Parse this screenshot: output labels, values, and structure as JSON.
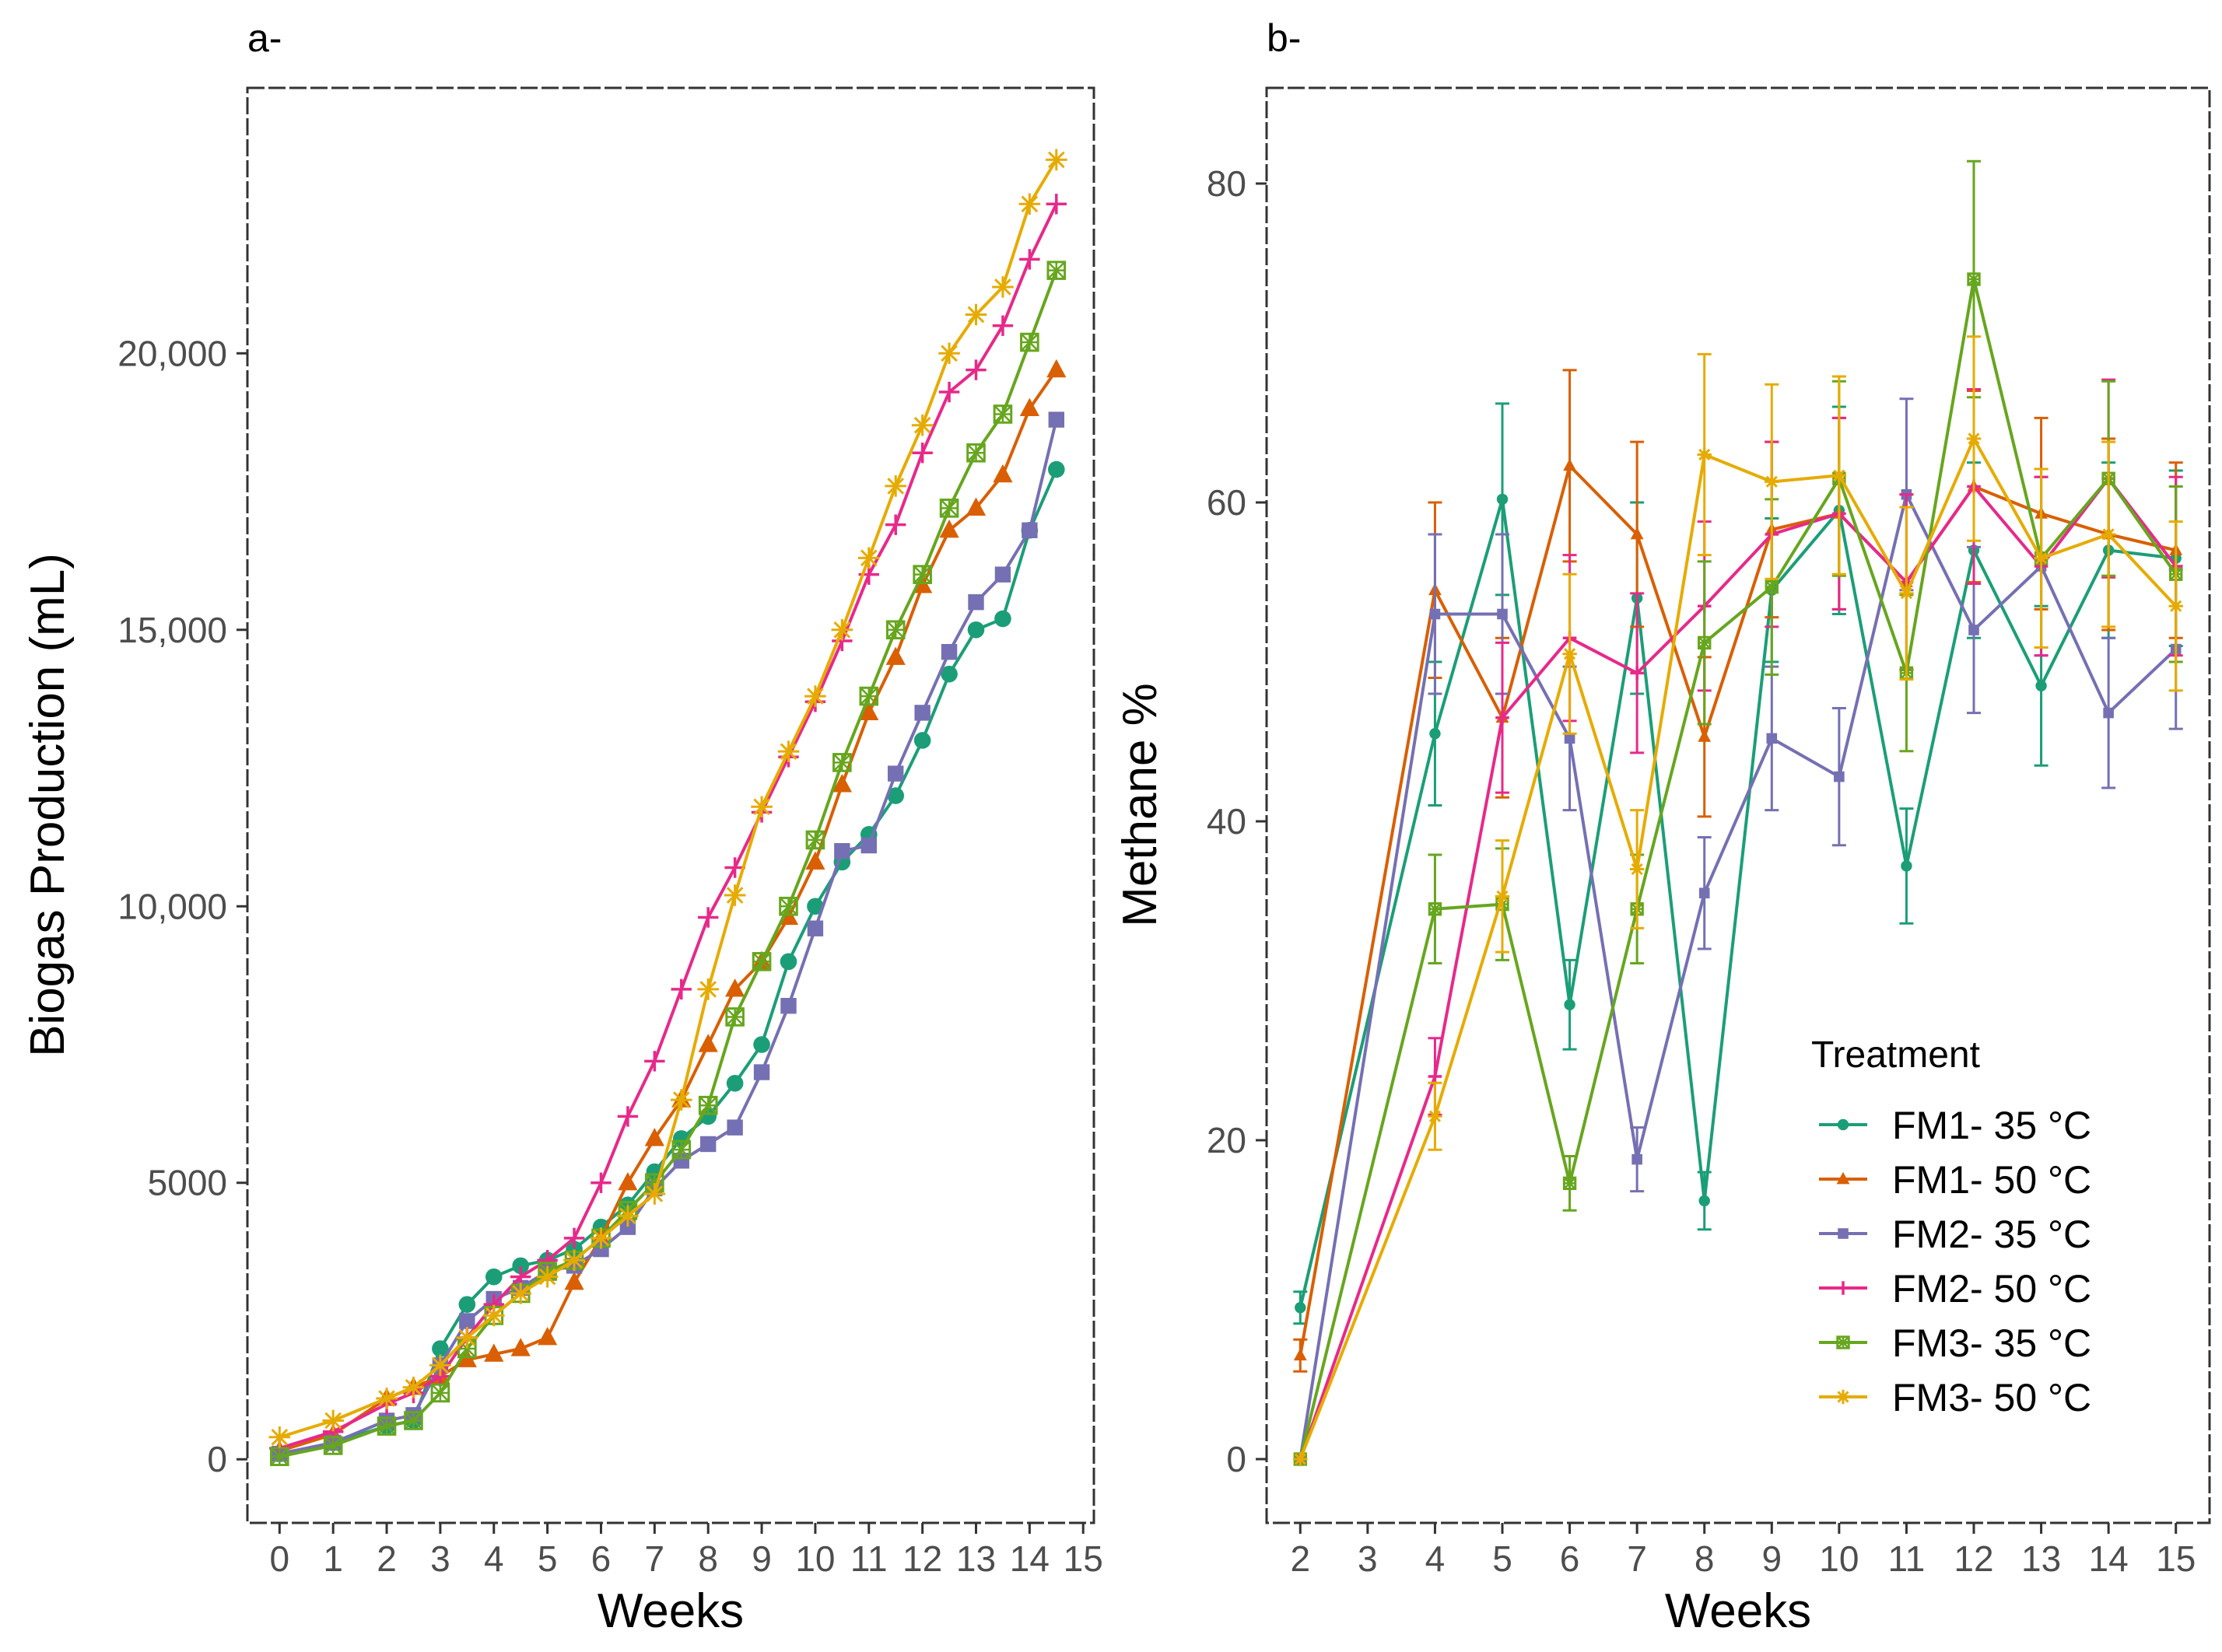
{
  "figure": {
    "panel_a_label": "a-",
    "panel_b_label": "b-"
  },
  "legend": {
    "title": "Treatment",
    "entries": [
      {
        "label": "FM1- 35 °C",
        "color": "#1b9e77",
        "marker": "circle"
      },
      {
        "label": "FM1- 50 °C",
        "color": "#d95f02",
        "marker": "triangle"
      },
      {
        "label": "FM2- 35 °C",
        "color": "#7570b3",
        "marker": "square"
      },
      {
        "label": "FM2- 50 °C",
        "color": "#e7298a",
        "marker": "plus"
      },
      {
        "label": "FM3- 35 °C",
        "color": "#66a61e",
        "marker": "boxed-cross"
      },
      {
        "label": "FM3- 50 °C",
        "color": "#e6ab02",
        "marker": "asterisk"
      }
    ]
  },
  "chart_data": [
    {
      "type": "line",
      "title": "a-",
      "xlabel": "Weeks",
      "ylabel": "Biogas Production (mL)",
      "xlim": [
        -0.6,
        15.2
      ],
      "ylim": [
        -1150,
        24800
      ],
      "x_ticks": [
        0,
        1,
        2,
        3,
        4,
        5,
        6,
        7,
        8,
        9,
        10,
        11,
        12,
        13,
        14,
        15
      ],
      "x_tick_labels": [
        "0",
        "1",
        "2",
        "3",
        "4",
        "5",
        "6",
        "7",
        "8",
        "9",
        "10",
        "11",
        "12",
        "13",
        "14",
        "15"
      ],
      "y_ticks": [
        0,
        5000,
        10000,
        15000,
        20000
      ],
      "y_tick_labels": [
        "0",
        "5000",
        "10,000",
        "15,000",
        "20,000"
      ],
      "grid": false,
      "series": [
        {
          "name": "FM1- 35 °C",
          "x": [
            0,
            1,
            2,
            2.5,
            3,
            3.5,
            4,
            4.5,
            5,
            5.5,
            6,
            6.5,
            7,
            7.5,
            8,
            8.5,
            9,
            9.5,
            10,
            10.5,
            11,
            11.5,
            12,
            12.5,
            13,
            13.5,
            14,
            14.5
          ],
          "y": [
            100,
            300,
            600,
            700,
            2000,
            2800,
            3300,
            3500,
            3600,
            3800,
            4200,
            4600,
            5200,
            5800,
            6200,
            6800,
            7500,
            9000,
            10000,
            10800,
            11300,
            12000,
            13000,
            14200,
            15000,
            15200,
            16800,
            17900
          ]
        },
        {
          "name": "FM1- 50 °C",
          "x": [
            0,
            1,
            2,
            2.5,
            3,
            3.5,
            4,
            4.5,
            5,
            5.5,
            6,
            6.5,
            7,
            7.5,
            8,
            8.5,
            9,
            9.5,
            10,
            10.5,
            11,
            11.5,
            12,
            12.5,
            13,
            13.5,
            14,
            14.5
          ],
          "y": [
            150,
            450,
            1100,
            1300,
            1500,
            1800,
            1900,
            2000,
            2200,
            3200,
            4000,
            5000,
            5800,
            6500,
            7500,
            8500,
            9000,
            9800,
            10800,
            12200,
            13500,
            14500,
            15800,
            16800,
            17200,
            17800,
            19000,
            19700
          ]
        },
        {
          "name": "FM2- 35 °C",
          "x": [
            0,
            1,
            2,
            2.5,
            3,
            3.5,
            4,
            4.5,
            5,
            5.5,
            6,
            6.5,
            7,
            7.5,
            8,
            8.5,
            9,
            9.5,
            10,
            10.5,
            11,
            11.5,
            12,
            12.5,
            13,
            13.5,
            14,
            14.5
          ],
          "y": [
            100,
            300,
            700,
            800,
            1700,
            2500,
            2900,
            3100,
            3400,
            3500,
            3800,
            4200,
            4900,
            5400,
            5700,
            6000,
            7000,
            8200,
            9600,
            11000,
            11100,
            12400,
            13500,
            14600,
            15500,
            16000,
            16800,
            18800
          ]
        },
        {
          "name": "FM2- 50 °C",
          "x": [
            0,
            1,
            2,
            2.5,
            3,
            3.5,
            4,
            4.5,
            5,
            5.5,
            6,
            6.5,
            7,
            7.5,
            8,
            8.5,
            9,
            9.5,
            10,
            10.5,
            11,
            11.5,
            12,
            12.5,
            13,
            13.5,
            14,
            14.5
          ],
          "y": [
            200,
            500,
            1000,
            1200,
            1500,
            2200,
            2800,
            3300,
            3600,
            4000,
            5000,
            6200,
            7200,
            8500,
            9800,
            10700,
            11700,
            12700,
            13700,
            14800,
            16000,
            16900,
            18200,
            19300,
            19700,
            20500,
            21700,
            22700
          ]
        },
        {
          "name": "FM3- 35 °C",
          "x": [
            0,
            1,
            2,
            2.5,
            3,
            3.5,
            4,
            4.5,
            5,
            5.5,
            6,
            6.5,
            7,
            7.5,
            8,
            8.5,
            9,
            9.5,
            10,
            10.5,
            11,
            11.5,
            12,
            12.5,
            13,
            13.5,
            14,
            14.5
          ],
          "y": [
            50,
            250,
            600,
            700,
            1200,
            2000,
            2600,
            3000,
            3400,
            3600,
            4000,
            4500,
            5000,
            5600,
            6400,
            8000,
            9000,
            10000,
            11200,
            12600,
            13800,
            15000,
            16000,
            17200,
            18200,
            18900,
            20200,
            21500
          ]
        },
        {
          "name": "FM3- 50 °C",
          "x": [
            0,
            1,
            2,
            2.5,
            3,
            3.5,
            4,
            4.5,
            5,
            5.5,
            6,
            6.5,
            7,
            7.5,
            8,
            8.5,
            9,
            9.5,
            10,
            10.5,
            11,
            11.5,
            12,
            12.5,
            13,
            13.5,
            14,
            14.5
          ],
          "y": [
            400,
            700,
            1100,
            1300,
            1700,
            2200,
            2600,
            3000,
            3300,
            3600,
            4000,
            4400,
            4800,
            6500,
            8500,
            10200,
            11800,
            12800,
            13800,
            15000,
            16300,
            17600,
            18700,
            20000,
            20700,
            21200,
            22700,
            23500
          ]
        }
      ]
    },
    {
      "type": "line",
      "title": "b-",
      "xlabel": "Weeks",
      "ylabel": "Methane %",
      "xlim": [
        1.5,
        15.5
      ],
      "ylim": [
        -4,
        86
      ],
      "x_ticks": [
        2,
        3,
        4,
        5,
        6,
        7,
        8,
        9,
        10,
        11,
        12,
        13,
        14,
        15
      ],
      "x_tick_labels": [
        "2",
        "3",
        "4",
        "5",
        "6",
        "7",
        "8",
        "9",
        "10",
        "11",
        "12",
        "13",
        "14",
        "15"
      ],
      "y_ticks": [
        0,
        20,
        40,
        60,
        80
      ],
      "y_tick_labels": [
        "0",
        "20",
        "40",
        "60",
        "80"
      ],
      "grid": false,
      "legend_position": "bottom-right",
      "series": [
        {
          "name": "FM1- 35 °C",
          "x": [
            2,
            4,
            5,
            6,
            7,
            8,
            9,
            10,
            11,
            12,
            13,
            14,
            15
          ],
          "y": [
            9.5,
            45.5,
            60.2,
            28.5,
            54,
            16.2,
            54.5,
            59.5,
            37.2,
            57,
            48.5,
            57,
            56.5
          ],
          "err": [
            1,
            4.5,
            6,
            2.8,
            6,
            1.8,
            4.5,
            6.5,
            3.6,
            5.5,
            5,
            5.5,
            5.5
          ]
        },
        {
          "name": "FM1- 50 °C",
          "x": [
            2,
            4,
            5,
            6,
            7,
            8,
            9,
            10,
            11,
            12,
            13,
            14,
            15
          ],
          "y": [
            6.5,
            54.5,
            46.5,
            62.3,
            58,
            45.3,
            58.3,
            59.3,
            55,
            61,
            59.3,
            58,
            57
          ],
          "err": [
            1,
            5.5,
            5,
            6,
            5.8,
            5,
            5.5,
            6,
            5.5,
            6,
            6,
            6,
            5.5
          ]
        },
        {
          "name": "FM2- 35 °C",
          "x": [
            2,
            4,
            5,
            6,
            7,
            8,
            9,
            10,
            11,
            12,
            13,
            14,
            15
          ],
          "y": [
            0,
            53,
            53,
            45.2,
            18.8,
            35.5,
            45.2,
            42.8,
            60.5,
            52,
            56,
            46.8,
            50.8
          ],
          "err": [
            0,
            5,
            5,
            4.5,
            2,
            3.5,
            4.5,
            4.3,
            6,
            5.2,
            5.6,
            4.7,
            5
          ]
        },
        {
          "name": "FM2- 50 °C",
          "x": [
            2,
            4,
            5,
            6,
            7,
            8,
            9,
            10,
            11,
            12,
            13,
            14,
            15
          ],
          "y": [
            0,
            24,
            46.5,
            51.5,
            49.3,
            53.5,
            58,
            59.3,
            55,
            61,
            56,
            61.5,
            56
          ],
          "err": [
            0,
            2.4,
            4.7,
            5.2,
            5,
            5.3,
            5.8,
            6,
            5.5,
            6.1,
            5.6,
            6.2,
            5.6
          ]
        },
        {
          "name": "FM3- 35 °C",
          "x": [
            2,
            4,
            5,
            6,
            7,
            8,
            9,
            10,
            11,
            12,
            13,
            14,
            15
          ],
          "y": [
            0,
            34.5,
            34.8,
            17.3,
            34.5,
            51.2,
            54.7,
            61.5,
            49.3,
            74,
            56.5,
            61.5,
            55.5
          ],
          "err": [
            0,
            3.4,
            3.5,
            1.7,
            3.4,
            5.1,
            5.5,
            6.1,
            4.9,
            7.4,
            5.6,
            6.1,
            5.5
          ]
        },
        {
          "name": "FM3- 50 °C",
          "x": [
            2,
            4,
            5,
            6,
            7,
            8,
            9,
            10,
            11,
            12,
            13,
            14,
            15
          ],
          "y": [
            0,
            21.5,
            35.3,
            50.5,
            37,
            63,
            61.3,
            61.7,
            54.3,
            64,
            56.5,
            58,
            53.5
          ],
          "err": [
            0,
            2.1,
            3.5,
            5,
            3.7,
            6.3,
            6.1,
            6.2,
            5.4,
            6.4,
            5.6,
            5.8,
            5.3
          ]
        }
      ]
    }
  ]
}
